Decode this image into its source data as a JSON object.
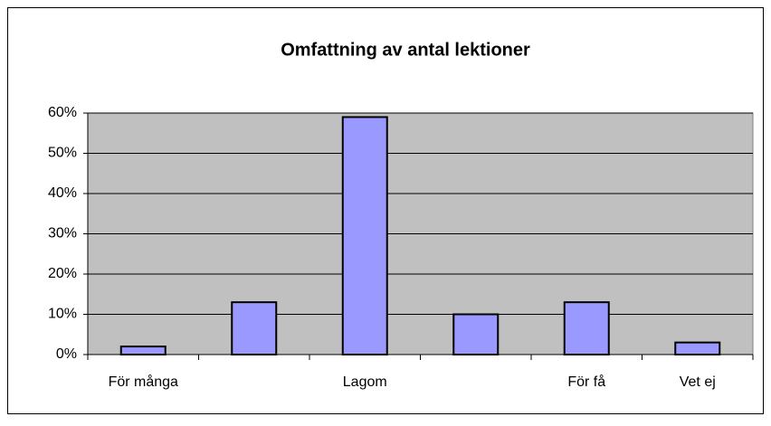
{
  "chart_data": {
    "type": "bar",
    "title": "Omfattning av antal lektioner",
    "categories": [
      "För många",
      null,
      "Lagom",
      null,
      "För få",
      "Vet ej"
    ],
    "values": [
      2,
      13,
      59,
      10,
      13,
      3
    ],
    "color": "#9999ff",
    "ylim": [
      0,
      60
    ],
    "yticks": [
      {
        "value": 0,
        "label": "0%"
      },
      {
        "value": 10,
        "label": "10%"
      },
      {
        "value": 20,
        "label": "20%"
      },
      {
        "value": 30,
        "label": "30%"
      },
      {
        "value": 40,
        "label": "40%"
      },
      {
        "value": 50,
        "label": "50%"
      },
      {
        "value": 60,
        "label": "60%"
      }
    ],
    "grid": true
  }
}
